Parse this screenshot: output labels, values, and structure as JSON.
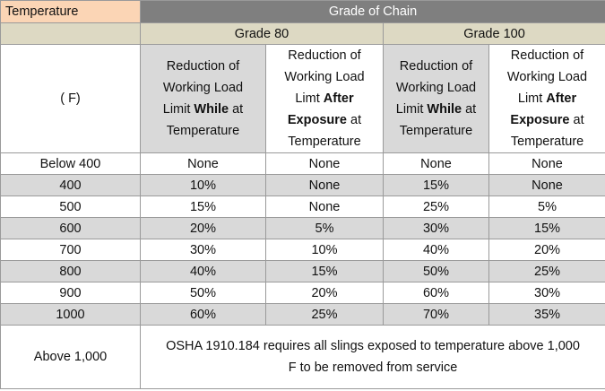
{
  "header": {
    "temperature_label": "Temperature",
    "group_label": "Grade of Chain",
    "grade_80": "Grade 80",
    "grade_100": "Grade 100",
    "unit_label": "(  F)",
    "while_col": {
      "line1": "Reduction of",
      "line2": "Working Load",
      "line3_pre": "Limit ",
      "line3_bold": "While",
      "line3_post": " at",
      "line4": "Temperature"
    },
    "after_col": {
      "line1": "Reduction of",
      "line2": "Working Load",
      "line3_pre": "Limt ",
      "line3_bold": "After",
      "line4_bold": "Exposure",
      "line4_post": " at",
      "line5": "Temperature"
    }
  },
  "rows": [
    {
      "temp": "Below 400",
      "g80_while": "None",
      "g80_after": "None",
      "g100_while": "None",
      "g100_after": "None"
    },
    {
      "temp": "400",
      "g80_while": "10%",
      "g80_after": "None",
      "g100_while": "15%",
      "g100_after": "None"
    },
    {
      "temp": "500",
      "g80_while": "15%",
      "g80_after": "None",
      "g100_while": "25%",
      "g100_after": "5%"
    },
    {
      "temp": "600",
      "g80_while": "20%",
      "g80_after": "5%",
      "g100_while": "30%",
      "g100_after": "15%"
    },
    {
      "temp": "700",
      "g80_while": "30%",
      "g80_after": "10%",
      "g100_while": "40%",
      "g100_after": "20%"
    },
    {
      "temp": "800",
      "g80_while": "40%",
      "g80_after": "15%",
      "g100_while": "50%",
      "g100_after": "25%"
    },
    {
      "temp": "900",
      "g80_while": "50%",
      "g80_after": "20%",
      "g100_while": "60%",
      "g100_after": "30%"
    },
    {
      "temp": "1000",
      "g80_while": "60%",
      "g80_after": "25%",
      "g100_while": "70%",
      "g100_after": "35%"
    }
  ],
  "footer": {
    "temp": "Above 1,000",
    "line1": "OSHA 1910.184 requires all slings exposed to temperature above 1,000",
    "line2": "F to be removed from service"
  },
  "colors": {
    "header_peach": "#fbd5b5",
    "header_dark": "#7f7f7f",
    "grade_tan": "#ddd9c3",
    "row_shade": "#d9d9d9"
  }
}
